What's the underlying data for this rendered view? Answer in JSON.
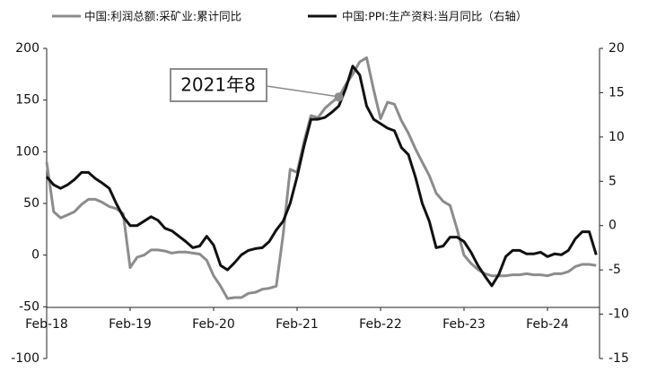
{
  "chart_data": {
    "type": "line",
    "categories": [
      "Feb-18",
      null,
      null,
      null,
      null,
      null,
      null,
      null,
      null,
      null,
      null,
      null,
      "Feb-19",
      null,
      null,
      null,
      null,
      null,
      null,
      null,
      null,
      null,
      null,
      null,
      "Feb-20",
      null,
      null,
      null,
      null,
      null,
      null,
      null,
      null,
      null,
      null,
      null,
      "Feb-21",
      null,
      null,
      null,
      null,
      null,
      null,
      null,
      null,
      null,
      null,
      null,
      "Feb-22",
      null,
      null,
      null,
      null,
      null,
      null,
      null,
      null,
      null,
      null,
      null,
      "Feb-23",
      null,
      null,
      null,
      null,
      null,
      null,
      null,
      null,
      null,
      null,
      null,
      "Feb-24",
      null,
      null,
      null,
      null,
      null,
      null,
      null
    ],
    "series": [
      {
        "name": "中国:利润总额:采矿业:累计同比",
        "color": "#8c8c8c",
        "axis": "y",
        "values": [
          90,
          42,
          36,
          39,
          42,
          49,
          54,
          54,
          51,
          47,
          45,
          40,
          -12,
          -2,
          0,
          5,
          5,
          4,
          2,
          3,
          3,
          2,
          1,
          -5,
          -20,
          -30,
          -42,
          -41,
          -41,
          -37,
          -36,
          -33,
          -32,
          -30,
          20,
          83,
          80,
          110,
          135,
          133,
          142,
          148,
          153,
          165,
          175,
          187,
          191,
          160,
          132,
          148,
          146,
          130,
          118,
          103,
          90,
          77,
          60,
          52,
          48,
          25,
          0,
          -8,
          -14,
          -18,
          -20,
          -20,
          -20,
          -19,
          -19,
          -18,
          -19,
          -19,
          -20,
          -18,
          -18,
          -16,
          -11,
          -9,
          -9,
          -10
        ]
      },
      {
        "name": "中国:PPI:生产资料:当月同比（右轴）",
        "color": "#111111",
        "axis": "y2",
        "values": [
          5.5,
          4.6,
          4.2,
          4.6,
          5.2,
          6.0,
          6.0,
          5.3,
          4.8,
          4.2,
          2.5,
          1.0,
          0.0,
          0.0,
          0.5,
          1.0,
          0.6,
          -0.3,
          -0.6,
          -1.2,
          -1.8,
          -2.5,
          -2.3,
          -1.2,
          -2.2,
          -4.5,
          -5.0,
          -4.2,
          -3.3,
          -2.8,
          -2.6,
          -2.5,
          -1.8,
          -0.5,
          0.5,
          2.5,
          5.5,
          9.0,
          12.0,
          12.0,
          12.2,
          12.8,
          13.5,
          15.5,
          18.0,
          17.0,
          13.5,
          12.0,
          11.5,
          11.0,
          10.7,
          8.8,
          8.0,
          5.5,
          2.5,
          0.5,
          -2.5,
          -2.3,
          -1.3,
          -1.3,
          -1.8,
          -3.0,
          -4.5,
          -5.7,
          -6.8,
          -5.5,
          -3.5,
          -2.8,
          -2.8,
          -3.2,
          -3.2,
          -3.0,
          -3.5,
          -3.2,
          -3.3,
          -2.8,
          -1.5,
          -0.7,
          -0.7,
          -3.3
        ]
      }
    ],
    "ylim": [
      -100,
      200
    ],
    "yticks": [
      -100,
      -50,
      0,
      50,
      100,
      150,
      200
    ],
    "y2lim": [
      -15,
      20
    ],
    "y2ticks": [
      -15,
      -10,
      -5,
      0,
      5,
      10,
      15,
      20
    ],
    "annotations": [
      {
        "text": "2021年8"
      }
    ]
  }
}
